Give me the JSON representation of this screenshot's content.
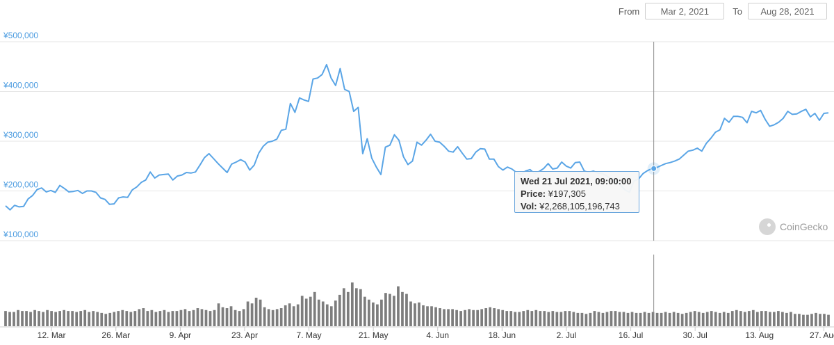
{
  "range": {
    "from_label": "From",
    "from_value": "Mar 2, 2021",
    "to_label": "To",
    "to_value": "Aug 28, 2021"
  },
  "tooltip": {
    "date": "Wed 21 Jul 2021, 09:00:00",
    "price_label": "Price:",
    "price_value": "¥197,305",
    "vol_label": "Vol:",
    "vol_value": "¥2,268,105,196,743"
  },
  "watermark": "CoinGecko",
  "colors": {
    "line": "#5aa5e6",
    "volume": "#7d7d7d",
    "grid": "#e6e6e6",
    "ytick": "#4a9be0"
  },
  "chart_data": [
    {
      "type": "line",
      "title": "",
      "xlabel": "",
      "ylabel": "",
      "ylim": [
        100000,
        500000
      ],
      "yticks": [
        "¥100,000",
        "¥200,000",
        "¥300,000",
        "¥400,000",
        "¥500,000"
      ],
      "xticks": [
        "12. Mar",
        "26. Mar",
        "9. Apr",
        "23. Apr",
        "7. May",
        "21. May",
        "4. Jun",
        "18. Jun",
        "2. Jul",
        "16. Jul",
        "30. Jul",
        "13. Aug",
        "27. Aug"
      ],
      "grid": true,
      "x_start": "2021-03-02",
      "x_end": "2021-08-28",
      "series": [
        {
          "name": "Price",
          "values": [
            170000,
            162000,
            171000,
            168000,
            169000,
            184000,
            191000,
            203000,
            206000,
            198000,
            201000,
            197000,
            211000,
            205000,
            198000,
            199000,
            201000,
            195000,
            200000,
            200000,
            197000,
            186000,
            183000,
            173000,
            174000,
            186000,
            188000,
            187000,
            202000,
            208000,
            217000,
            222000,
            238000,
            226000,
            232000,
            233000,
            234000,
            222000,
            230000,
            232000,
            237000,
            236000,
            238000,
            252000,
            267000,
            275000,
            265000,
            255000,
            246000,
            237000,
            254000,
            258000,
            263000,
            258000,
            242000,
            252000,
            276000,
            290000,
            298000,
            300000,
            304000,
            322000,
            324000,
            376000,
            358000,
            387000,
            383000,
            380000,
            425000,
            427000,
            434000,
            454000,
            427000,
            412000,
            446000,
            404000,
            400000,
            360000,
            368000,
            275000,
            305000,
            266000,
            248000,
            233000,
            288000,
            292000,
            313000,
            302000,
            269000,
            253000,
            260000,
            298000,
            292000,
            302000,
            314000,
            300000,
            298000,
            290000,
            280000,
            278000,
            289000,
            276000,
            264000,
            265000,
            278000,
            285000,
            284000,
            264000,
            264000,
            249000,
            242000,
            248000,
            244000,
            237000,
            233000,
            240000,
            243000,
            235000,
            239000,
            245000,
            255000,
            244000,
            246000,
            258000,
            250000,
            246000,
            257000,
            258000,
            240000,
            237000,
            240000,
            236000,
            235000,
            230000,
            224000,
            219000,
            212000,
            202000,
            197305,
            220000,
            224000,
            235000,
            241000,
            245000,
            247000,
            251000,
            255000,
            257000,
            260000,
            264000,
            272000,
            280000,
            282000,
            286000,
            280000,
            296000,
            306000,
            318000,
            323000,
            346000,
            338000,
            350000,
            350000,
            348000,
            337000,
            360000,
            357000,
            362000,
            344000,
            330000,
            333000,
            338000,
            346000,
            360000,
            354000,
            355000,
            360000,
            364000,
            349000,
            356000,
            342000,
            356000,
            357000
          ]
        }
      ]
    },
    {
      "type": "bar",
      "title": "Volume",
      "xlabel": "",
      "ylabel": "",
      "grid": false,
      "x_start": "2021-03-02",
      "x_end": "2021-08-28",
      "values": [
        16,
        15,
        15,
        17,
        16,
        16,
        15,
        17,
        16,
        15,
        17,
        16,
        15,
        16,
        17,
        16,
        16,
        15,
        16,
        17,
        15,
        16,
        15,
        14,
        13,
        14,
        15,
        16,
        17,
        16,
        15,
        16,
        18,
        19,
        16,
        17,
        15,
        16,
        17,
        15,
        16,
        16,
        17,
        18,
        16,
        17,
        19,
        18,
        17,
        16,
        17,
        24,
        20,
        19,
        21,
        17,
        16,
        18,
        26,
        24,
        30,
        28,
        20,
        18,
        17,
        18,
        19,
        22,
        24,
        21,
        23,
        32,
        29,
        31,
        36,
        28,
        26,
        23,
        21,
        27,
        33,
        40,
        36,
        46,
        40,
        39,
        31,
        28,
        25,
        23,
        28,
        35,
        34,
        32,
        42,
        36,
        34,
        26,
        24,
        25,
        22,
        21,
        21,
        20,
        19,
        18,
        18,
        18,
        17,
        16,
        17,
        18,
        17,
        17,
        18,
        19,
        20,
        19,
        18,
        17,
        16,
        16,
        15,
        15,
        16,
        17,
        16,
        17,
        16,
        16,
        15,
        16,
        15,
        15,
        16,
        16,
        15,
        14,
        14,
        13,
        14,
        16,
        15,
        14,
        15,
        16,
        16,
        15,
        15,
        14,
        15,
        14,
        14,
        15,
        14,
        15,
        14,
        14,
        15,
        14,
        15,
        14,
        13,
        14,
        15,
        16,
        15,
        14,
        15,
        16,
        15,
        14,
        15,
        14,
        16,
        17,
        16,
        15,
        16,
        17,
        15,
        16,
        16,
        15,
        15,
        16,
        15,
        14,
        15,
        13,
        13,
        12,
        12,
        13,
        14,
        13,
        13,
        12
      ]
    }
  ]
}
